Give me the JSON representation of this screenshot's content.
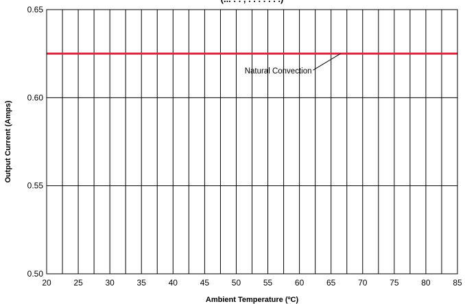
{
  "chart_data": {
    "type": "line",
    "title": "(... . . , . . . . . . .)",
    "xlabel": "Ambient Temperature (ºC)",
    "ylabel": "Output Current (Amps)",
    "xlim": [
      20,
      85
    ],
    "ylim": [
      0.5,
      0.65
    ],
    "x_ticks": [
      20,
      25,
      30,
      35,
      40,
      45,
      50,
      55,
      60,
      65,
      70,
      75,
      80,
      85
    ],
    "x_tick_labels": [
      "20",
      "25",
      "30",
      "35",
      "40",
      "45",
      "50",
      "55",
      "60",
      "65",
      "70",
      "75",
      "80",
      "85"
    ],
    "x_gridlines": [
      22.5,
      25,
      27.5,
      30,
      32.5,
      35,
      37.5,
      40,
      42.5,
      45,
      47.5,
      50,
      52.5,
      55,
      57.5,
      60,
      62.5,
      65,
      67.5,
      70,
      72.5,
      75,
      77.5,
      80,
      82.5
    ],
    "y_ticks": [
      0.5,
      0.55,
      0.6,
      0.65
    ],
    "y_tick_labels": [
      "0.50",
      "0.55",
      "0.60",
      "0.65"
    ],
    "grid": true,
    "series": [
      {
        "name": "Natural Convection",
        "color": "#d7263d",
        "x": [
          20,
          85
        ],
        "y": [
          0.625,
          0.625
        ]
      }
    ],
    "annotation": {
      "text": "Natural Convection",
      "points_to": {
        "x": 66.5,
        "y": 0.625
      }
    }
  }
}
